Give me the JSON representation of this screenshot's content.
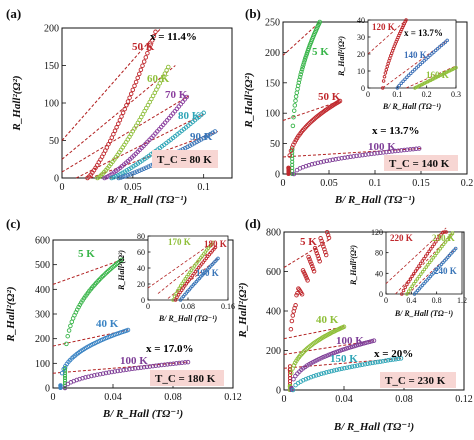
{
  "colors": {
    "dashed_fit": "#b22222",
    "tc_box": "#f7d6d3",
    "50K": "#c0282d",
    "60K": "#8fbf3a",
    "70K": "#8b3f9e",
    "80K": "#2fa5b7",
    "90K": "#3a76b8",
    "5K": "#39b54a",
    "100K": "#7f3f98",
    "120K": "#c0282d",
    "140K": "#3b6fb6",
    "160K": "#8fbf3a",
    "40K_c": "#3b84c4",
    "170K": "#8fbf3a",
    "180K": "#c0282d",
    "190K": "#3a76b8",
    "5K_d": "#c0282d",
    "40K_d": "#8fbf3a",
    "150K": "#2fa5b7",
    "220K": "#c0282d",
    "230K": "#8fbf3a",
    "240K": "#3a76b8"
  },
  "chart_data": [
    {
      "panel": "(a)",
      "type": "scatter",
      "ylabel": "R_Hall²(Ω²)",
      "xlabel": "B/ R_Hall (TΩ⁻¹)",
      "xlim": [
        0,
        0.12
      ],
      "ylim": [
        0,
        200
      ],
      "xticks": [
        0,
        0.05,
        0.1
      ],
      "yticks": [
        0,
        50,
        100,
        150,
        200
      ],
      "xtick_labels": [
        "0",
        "0.05",
        "0.1"
      ],
      "ytick_labels": [
        "0",
        "50",
        "100",
        "150",
        "200"
      ],
      "x_note": "x = 11.4%",
      "tc_note": "T_C = 80 K",
      "series": [
        {
          "name": "50 K",
          "x0": 0.018,
          "x1": 0.066,
          "y1": 195,
          "exp": 1.25
        },
        {
          "name": "60 K",
          "x0": 0.025,
          "x1": 0.075,
          "y1": 148,
          "exp": 1.25
        },
        {
          "name": "70 K",
          "x0": 0.03,
          "x1": 0.088,
          "y1": 108,
          "exp": 1.25
        },
        {
          "name": "80 K",
          "x0": 0.035,
          "x1": 0.1,
          "y1": 87,
          "exp": 1.2
        },
        {
          "name": "90 K",
          "x0": 0.04,
          "x1": 0.108,
          "y1": 62,
          "exp": 1.2
        }
      ],
      "fits": [
        {
          "x": [
            0.0,
            0.07
          ],
          "y": [
            50,
            200
          ]
        },
        {
          "x": [
            0.0,
            0.08
          ],
          "y": [
            25,
            150
          ]
        },
        {
          "x": [
            0.0,
            0.09
          ],
          "y": [
            8,
            110
          ]
        },
        {
          "x": [
            0.01,
            0.1
          ],
          "y": [
            0,
            85
          ]
        },
        {
          "x": [
            0.02,
            0.11
          ],
          "y": [
            -5,
            62
          ]
        }
      ]
    },
    {
      "panel": "(b)",
      "type": "scatter",
      "ylabel": "R_Hall²(Ω²)",
      "xlabel": "B/ R_Hall (TΩ⁻¹)",
      "xlim": [
        0,
        0.2
      ],
      "ylim": [
        0,
        250
      ],
      "xticks": [
        0,
        0.05,
        0.1,
        0.15,
        0.2
      ],
      "yticks": [
        0,
        50,
        100,
        150,
        200,
        250
      ],
      "xtick_labels": [
        "0",
        "0.05",
        "0.1",
        "0.15",
        "0.2"
      ],
      "ytick_labels": [
        "0",
        "50",
        "100",
        "150",
        "200",
        "250"
      ],
      "x_note": "x = 13.7%",
      "tc_note": "T_C = 140 K",
      "series": [
        {
          "name": "5 K",
          "x0": 0.01,
          "x1": 0.04,
          "y1": 250,
          "exp": 0.45,
          "ybase": 40
        },
        {
          "name": "50 K",
          "x0": 0.006,
          "x1": 0.062,
          "y1": 120,
          "exp": 0.45,
          "ybase": 10
        },
        {
          "name": "100 K",
          "x0": 0.012,
          "x1": 0.148,
          "y1": 42,
          "exp": 0.5
        }
      ],
      "fits": [
        {
          "x": [
            0.0,
            0.04
          ],
          "y": [
            195,
            250
          ]
        },
        {
          "x": [
            0.0,
            0.062
          ],
          "y": [
            88,
            120
          ]
        },
        {
          "x": [
            0.0,
            0.15
          ],
          "y": [
            28,
            42
          ]
        }
      ],
      "inset": {
        "xlim": [
          0,
          0.3
        ],
        "ylim": [
          0,
          40
        ],
        "xticks": [
          0,
          0.1,
          0.2,
          0.3
        ],
        "yticks": [
          0,
          10,
          20,
          30,
          40
        ],
        "xtick_labels": [
          "0",
          "0.1",
          "0.2",
          "0.3"
        ],
        "ytick_labels": [
          "0",
          "10",
          "20",
          "30",
          "40"
        ],
        "ylabel": "R_Hall²(Ω²)",
        "xlabel": "B/ R_Hall (TΩ⁻¹)",
        "x_note": "x = 13.7%",
        "series": [
          {
            "name": "120 K",
            "x0": 0.05,
            "x1": 0.13,
            "y1": 40,
            "exp": 0.7
          },
          {
            "name": "140 K",
            "x0": 0.1,
            "x1": 0.27,
            "y1": 28,
            "exp": 0.9
          },
          {
            "name": "160 K",
            "x0": 0.16,
            "x1": 0.3,
            "y1": 12,
            "exp": 1.0
          }
        ],
        "fits": [
          {
            "x": [
              0.0,
              0.13
            ],
            "y": [
              20,
              40
            ]
          },
          {
            "x": [
              0.05,
              0.27
            ],
            "y": [
              0,
              28
            ]
          },
          {
            "x": [
              0.13,
              0.3
            ],
            "y": [
              0,
              13
            ]
          }
        ]
      }
    },
    {
      "panel": "(c)",
      "type": "scatter",
      "ylabel": "R_Hall²(Ω²)",
      "xlabel": "B/ R_Hall (TΩ⁻¹)",
      "xlim": [
        0,
        0.12
      ],
      "ylim": [
        0,
        600
      ],
      "xticks": [
        0,
        0.04,
        0.08,
        0.12
      ],
      "yticks": [
        0,
        100,
        200,
        300,
        400,
        500,
        600
      ],
      "xtick_labels": [
        "0",
        "0.04",
        "0.08",
        "0.12"
      ],
      "ytick_labels": [
        "0",
        "100",
        "200",
        "300",
        "400",
        "500",
        "600"
      ],
      "x_note": "x = 17.0%",
      "tc_note": "T_C = 180 K",
      "series": [
        {
          "name": "5 K",
          "x0": 0.008,
          "x1": 0.046,
          "y1": 520,
          "exp": 0.4,
          "ybase": 80
        },
        {
          "name": "40 K",
          "x0": 0.005,
          "x1": 0.05,
          "y1": 235,
          "exp": 0.4,
          "ybase": 10
        },
        {
          "name": "100 K",
          "x0": 0.008,
          "x1": 0.09,
          "y1": 105,
          "exp": 0.5
        }
      ],
      "fits": [
        {
          "x": [
            0.0,
            0.046
          ],
          "y": [
            420,
            520
          ]
        },
        {
          "x": [
            0.0,
            0.05
          ],
          "y": [
            170,
            235
          ]
        },
        {
          "x": [
            0.0,
            0.09
          ],
          "y": [
            60,
            105
          ]
        }
      ],
      "inset": {
        "xlim": [
          0,
          0.16
        ],
        "ylim": [
          0,
          80
        ],
        "xticks": [
          0,
          0.08,
          0.16
        ],
        "yticks": [
          0,
          20,
          40,
          60,
          80
        ],
        "xtick_labels": [
          "0",
          "0.08",
          "0.16"
        ],
        "ytick_labels": [
          "0",
          "20",
          "40",
          "60",
          "80"
        ],
        "ylabel": "R_Hall²(Ω²)",
        "xlabel": "B/ R_Hall (TΩ⁻¹)",
        "series": [
          {
            "name": "170 K",
            "x0": 0.05,
            "x1": 0.13,
            "y1": 72,
            "exp": 0.85
          },
          {
            "name": "180 K",
            "x0": 0.055,
            "x1": 0.135,
            "y1": 66,
            "exp": 0.9
          },
          {
            "name": "190 K",
            "x0": 0.065,
            "x1": 0.14,
            "y1": 52,
            "exp": 0.95
          }
        ],
        "fits": [
          {
            "x": [
              0.0,
              0.13
            ],
            "y": [
              15,
              72
            ]
          },
          {
            "x": [
              0.02,
              0.135
            ],
            "y": [
              8,
              66
            ]
          },
          {
            "x": [
              0.04,
              0.14
            ],
            "y": [
              2,
              52
            ]
          }
        ]
      }
    },
    {
      "panel": "(d)",
      "type": "scatter",
      "ylabel": "R_Hall²(Ω²)",
      "xlabel": "B/ R_Hall (TΩ⁻¹)",
      "xlim": [
        0,
        0.12
      ],
      "ylim": [
        0,
        800
      ],
      "xticks": [
        0,
        0.04,
        0.08,
        0.12
      ],
      "yticks": [
        0,
        200,
        400,
        600,
        800
      ],
      "xtick_labels": [
        "0",
        "0.04",
        "0.08",
        "0.12"
      ],
      "ytick_labels": [
        "0",
        "200",
        "400",
        "600",
        "800"
      ],
      "x_note": "x = 20%",
      "tc_note": "T_C = 230 K",
      "series": [
        {
          "name": "5 K",
          "x0": 0.004,
          "x1": 0.03,
          "y1": 760,
          "exp": 0.35,
          "ybase": 120,
          "scatter": true
        },
        {
          "name": "40 K",
          "x0": 0.004,
          "x1": 0.04,
          "y1": 320,
          "exp": 0.4,
          "ybase": 20
        },
        {
          "name": "100 K",
          "x0": 0.005,
          "x1": 0.06,
          "y1": 250,
          "exp": 0.45,
          "ybase": 10
        },
        {
          "name": "150 K",
          "x0": 0.006,
          "x1": 0.078,
          "y1": 160,
          "exp": 0.5
        }
      ],
      "fits": [
        {
          "x": [
            0.0,
            0.03
          ],
          "y": [
            620,
            760
          ]
        },
        {
          "x": [
            0.0,
            0.04
          ],
          "y": [
            260,
            320
          ]
        },
        {
          "x": [
            0.0,
            0.06
          ],
          "y": [
            180,
            250
          ]
        },
        {
          "x": [
            0.0,
            0.078
          ],
          "y": [
            110,
            160
          ]
        }
      ],
      "inset": {
        "xlim": [
          0,
          1.2
        ],
        "ylim": [
          0,
          120
        ],
        "xticks": [
          0,
          0.4,
          0.8,
          1.2
        ],
        "yticks": [
          0,
          40,
          80,
          120
        ],
        "xtick_labels": [
          "0",
          "0.4",
          "0.8",
          "1.2"
        ],
        "ytick_labels": [
          "0",
          "40",
          "80",
          "120"
        ],
        "ylabel": "R_Hall²(Ω²)",
        "xlabel": "B/ R_Hall (TΩ⁻¹)",
        "series": [
          {
            "name": "220 K",
            "x0": 0.25,
            "x1": 0.95,
            "y1": 128,
            "exp": 0.9
          },
          {
            "name": "230 K",
            "x0": 0.33,
            "x1": 1.05,
            "y1": 118,
            "exp": 0.95
          },
          {
            "name": "240 K",
            "x0": 0.45,
            "x1": 1.1,
            "y1": 88,
            "exp": 1.0
          }
        ],
        "fits": [
          {
            "x": [
              0.0,
              0.95
            ],
            "y": [
              20,
              128
            ]
          },
          {
            "x": [
              0.15,
              1.05
            ],
            "y": [
              0,
              118
            ]
          },
          {
            "x": [
              0.35,
              1.1
            ],
            "y": [
              0,
              88
            ]
          }
        ]
      }
    }
  ]
}
